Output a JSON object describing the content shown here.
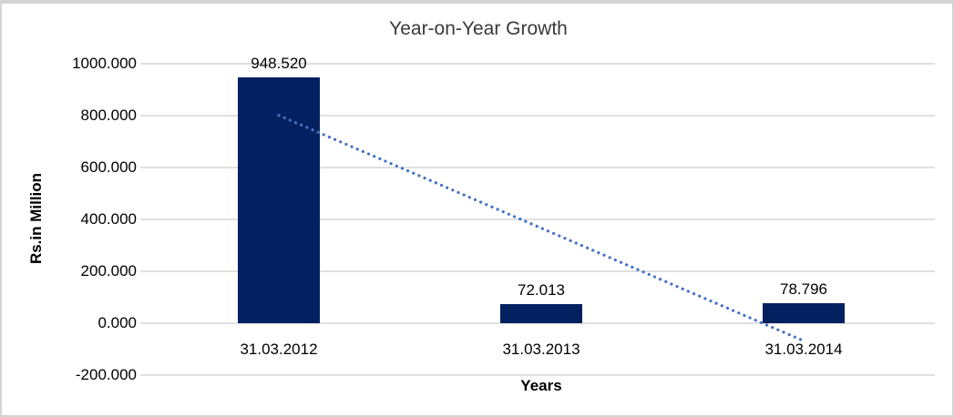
{
  "chart_data": {
    "type": "bar",
    "title": "Year-on-Year Growth",
    "xlabel": "Years",
    "ylabel": "Rs.in Million",
    "categories": [
      "31.03.2012",
      "31.03.2013",
      "31.03.2014"
    ],
    "series": [
      {
        "name": "Rs.in Million",
        "values": [
          948.52,
          72.013,
          78.796
        ],
        "value_labels": [
          "948.520",
          "72.013",
          "78.796"
        ]
      }
    ],
    "ylim": [
      -200,
      1000
    ],
    "yticks": [
      {
        "value": 1000,
        "label": "1000.000"
      },
      {
        "value": 800,
        "label": "800.000"
      },
      {
        "value": 600,
        "label": "600.000"
      },
      {
        "value": 400,
        "label": "400.000"
      },
      {
        "value": 200,
        "label": "200.000"
      },
      {
        "value": 0,
        "label": "0.000"
      },
      {
        "value": -200,
        "label": "-200.000"
      }
    ],
    "grid": true,
    "legend": "none",
    "trendline": {
      "kind": "linear",
      "style": "dotted",
      "start": {
        "category_index": 0,
        "value": 801
      },
      "end": {
        "category_index": 2,
        "value": -68
      }
    },
    "colors": {
      "bar": "#032161",
      "trendline": "#4472C4",
      "gridline": "#d6d6d6",
      "frame": "#d4d4d4"
    }
  }
}
